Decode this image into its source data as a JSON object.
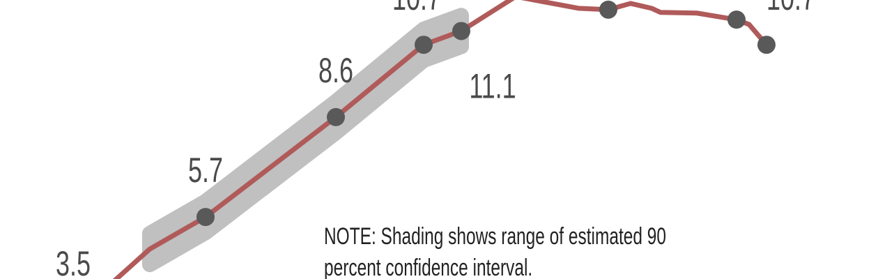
{
  "chart_data": {
    "type": "line",
    "note": [
      "NOTE: Shading shows range of estimated 90",
      "percent confidence interval."
    ],
    "xlim": [
      0,
      25
    ],
    "ylim": [
      3.9,
      12.0
    ],
    "x": [
      2.9,
      4.3,
      5.9,
      9.64,
      12.16,
      13.24,
      14.8,
      16.6,
      17.46,
      18.1,
      18.7,
      18.96,
      20.0,
      21.14,
      21.5,
      22.0
    ],
    "series": [
      {
        "color": "#b05a5a",
        "values": [
          3.5,
          4.77,
          5.7,
          8.6,
          10.7,
          11.1,
          12.1,
          11.76,
          11.72,
          11.9,
          11.76,
          11.64,
          11.62,
          11.43,
          11.29,
          10.7
        ],
        "lower": [
          null,
          4.32,
          5.25,
          8.15,
          10.25,
          10.65,
          null,
          null,
          null,
          null,
          null,
          null,
          null,
          null,
          null,
          null
        ],
        "upper": [
          null,
          5.22,
          6.15,
          9.05,
          11.15,
          11.55,
          null,
          null,
          null,
          null,
          null,
          null,
          null,
          null,
          null,
          null
        ],
        "dots": [
          2,
          3,
          4,
          5,
          8,
          13,
          15
        ],
        "labeled": [
          0,
          2,
          3,
          4,
          5,
          15
        ]
      }
    ],
    "band_color": "#c0c0c0",
    "dot_color": "#595959"
  }
}
